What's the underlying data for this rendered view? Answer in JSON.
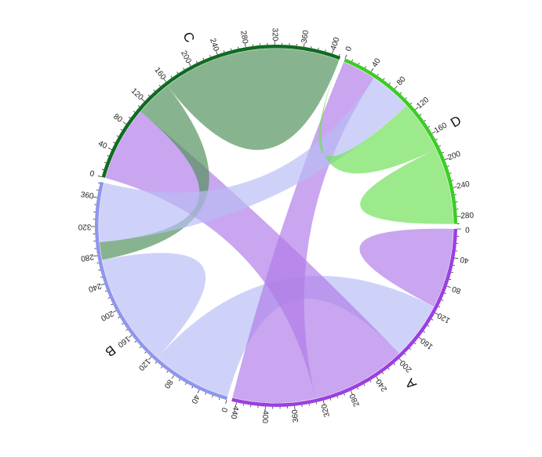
{
  "chart_data": {
    "type": "chord",
    "title": "",
    "groups": [
      {
        "name": "A",
        "total": 447,
        "color": "#9b3fe0",
        "ribbon_color": "#b07ce8"
      },
      {
        "name": "B",
        "total": 382,
        "color": "#8f96ec",
        "ribbon_color": "#b8bdf5"
      },
      {
        "name": "C",
        "total": 412,
        "color": "#0f6b22",
        "ribbon_color": "#4e9158"
      },
      {
        "name": "D",
        "total": 290,
        "color": "#3ccc24",
        "ribbon_color": "#6fe055"
      }
    ],
    "tick_step": 40,
    "matrix": [
      [
        113,
        82,
        135,
        117
      ],
      [
        113,
        160,
        25,
        84
      ],
      [
        106,
        52,
        254,
        0
      ],
      [
        48,
        60,
        74,
        108
      ]
    ]
  }
}
